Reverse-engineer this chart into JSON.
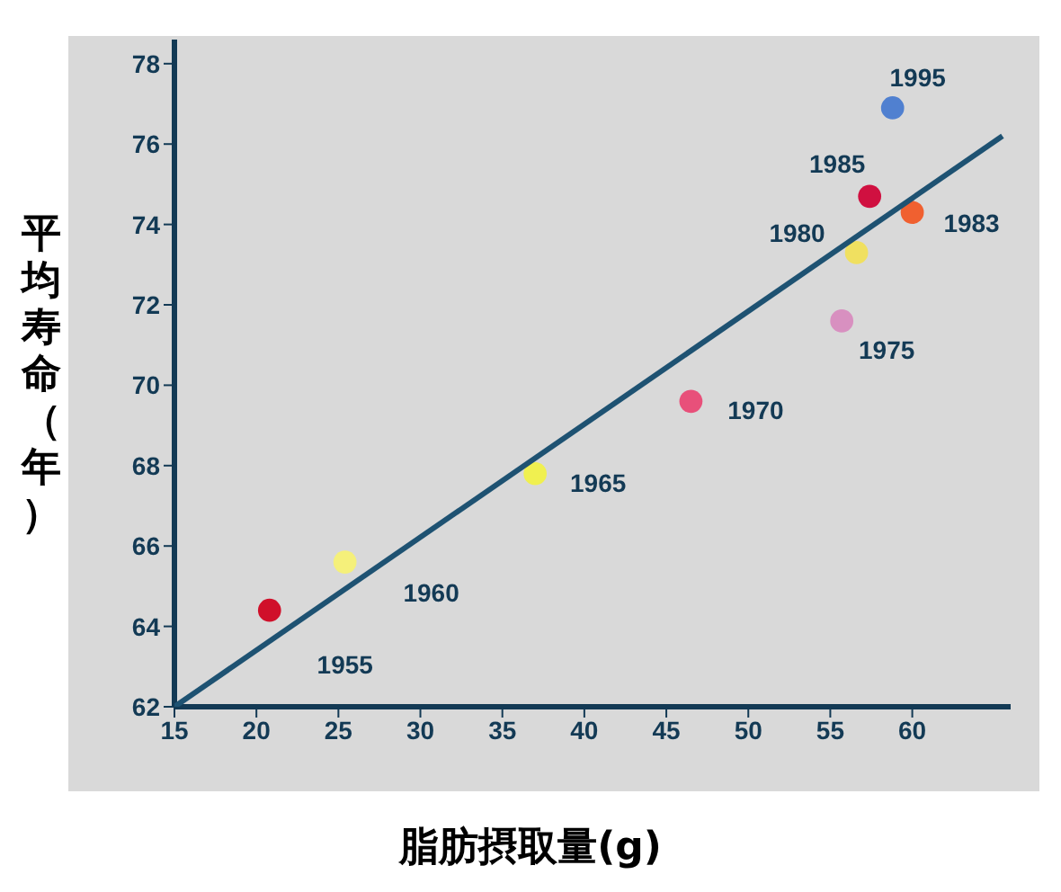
{
  "chart_data": {
    "type": "scatter",
    "xlabel": "脂肪摂取量(g)",
    "ylabel": "平均寿命（年）",
    "xlim": [
      15,
      66
    ],
    "ylim": [
      62,
      78.6
    ],
    "xticks": [
      15,
      20,
      25,
      30,
      35,
      40,
      45,
      50,
      55,
      60
    ],
    "yticks": [
      62,
      64,
      66,
      68,
      70,
      72,
      74,
      76,
      78
    ],
    "grid": false,
    "legend": false,
    "marker": "circle",
    "series": [
      {
        "x": [
          20.8,
          25.4,
          37,
          46.5,
          55.7,
          56.6,
          60,
          57.4,
          58.8
        ],
        "values": [
          64.4,
          65.6,
          67.8,
          69.6,
          71.6,
          73.3,
          74.3,
          74.7,
          76.9
        ],
        "colors": [
          "#d0102a",
          "#f5f07a",
          "#f0f050",
          "#e8507a",
          "#d890c0",
          "#f0e060",
          "#f06030",
          "#d01040",
          "#5080d0"
        ]
      },
      {
        "type": "line",
        "x": [
          15,
          65.5
        ],
        "values": [
          62,
          76.2
        ],
        "color": "#1e5272",
        "marker": "none"
      }
    ],
    "annotations": [
      {
        "text": "1955",
        "x": 20.8,
        "y": 64.4
      },
      {
        "text": "1960",
        "x": 25.4,
        "y": 65.6
      },
      {
        "text": "1965",
        "x": 37,
        "y": 67.8
      },
      {
        "text": "1970",
        "x": 46.5,
        "y": 69.6
      },
      {
        "text": "1975",
        "x": 55.7,
        "y": 71.6
      },
      {
        "text": "1980",
        "x": 56.6,
        "y": 73.3
      },
      {
        "text": "1983",
        "x": 60,
        "y": 74.3
      },
      {
        "text": "1985",
        "x": 57.4,
        "y": 74.7
      },
      {
        "text": "1995",
        "x": 58.8,
        "y": 76.9
      }
    ]
  }
}
